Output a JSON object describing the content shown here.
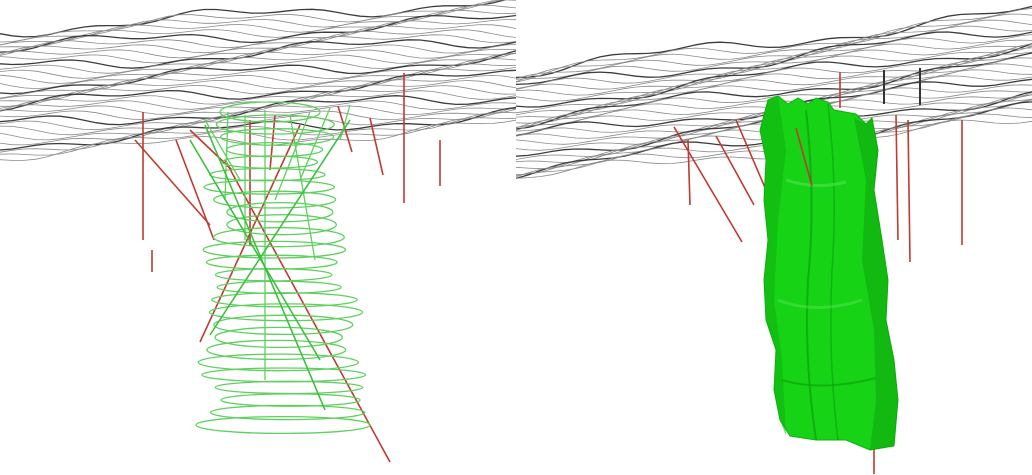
{
  "figure": {
    "panels": [
      {
        "id": "left",
        "rendering": "wireframe-sections"
      },
      {
        "id": "right",
        "rendering": "solid-surface"
      }
    ]
  },
  "colors": {
    "background": "#ffffff",
    "topo_contour": "#8a8a8a",
    "topo_contour_dark": "#3c3c3c",
    "drillhole": "#c03a30",
    "drillhole_dark": "#333333",
    "orebody_wire": "#5fd05f",
    "orebody_solid": "#16d316",
    "orebody_shade": "#0a9a0a"
  }
}
